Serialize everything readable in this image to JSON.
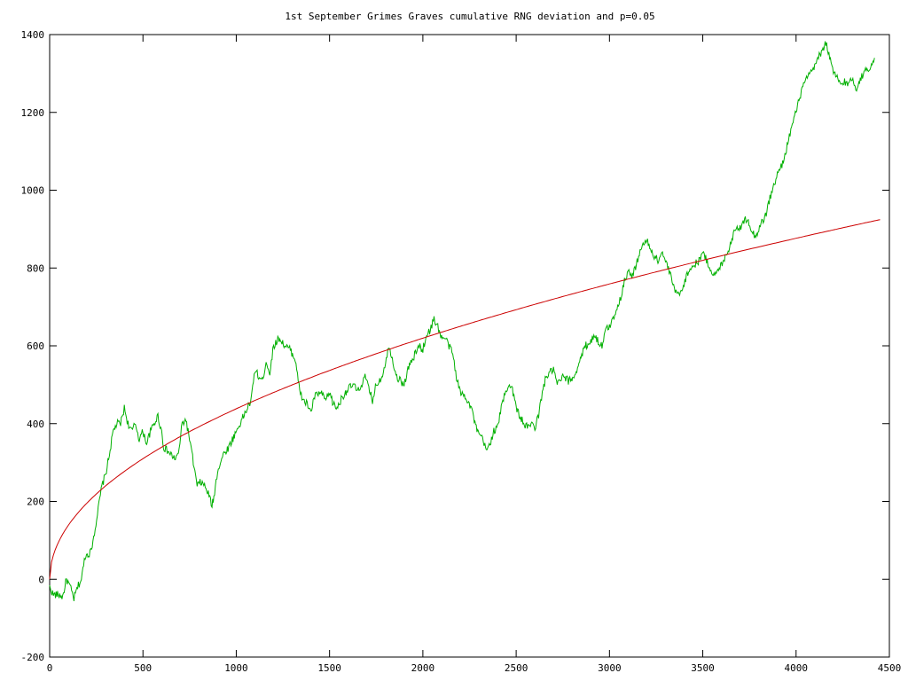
{
  "chart_data": {
    "type": "line",
    "title": "1st September Grimes Graves cumulative RNG deviation and p=0.05",
    "xlabel": "",
    "ylabel": "",
    "xlim": [
      0,
      4500
    ],
    "ylim": [
      -200,
      1400
    ],
    "x_ticks": [
      "0",
      "500",
      "1000",
      "1500",
      "2000",
      "2500",
      "3000",
      "3500",
      "4000",
      "4500"
    ],
    "y_ticks": [
      "-200",
      "0",
      "200",
      "400",
      "600",
      "800",
      "1000",
      "1200",
      "1400"
    ],
    "grid": false,
    "legend": "none",
    "series": [
      {
        "color": "#00b000",
        "points": [
          [
            0,
            -20
          ],
          [
            20,
            -40
          ],
          [
            50,
            -40
          ],
          [
            70,
            -45
          ],
          [
            90,
            0
          ],
          [
            110,
            -20
          ],
          [
            130,
            -50
          ],
          [
            150,
            -20
          ],
          [
            170,
            0
          ],
          [
            190,
            60
          ],
          [
            220,
            70
          ],
          [
            240,
            120
          ],
          [
            260,
            180
          ],
          [
            280,
            240
          ],
          [
            300,
            270
          ],
          [
            320,
            320
          ],
          [
            340,
            380
          ],
          [
            360,
            400
          ],
          [
            380,
            400
          ],
          [
            400,
            440
          ],
          [
            420,
            400
          ],
          [
            440,
            380
          ],
          [
            460,
            400
          ],
          [
            480,
            360
          ],
          [
            500,
            380
          ],
          [
            520,
            350
          ],
          [
            540,
            380
          ],
          [
            560,
            400
          ],
          [
            580,
            420
          ],
          [
            600,
            380
          ],
          [
            610,
            340
          ],
          [
            630,
            330
          ],
          [
            650,
            320
          ],
          [
            670,
            310
          ],
          [
            690,
            320
          ],
          [
            710,
            400
          ],
          [
            730,
            410
          ],
          [
            750,
            360
          ],
          [
            770,
            300
          ],
          [
            790,
            240
          ],
          [
            810,
            250
          ],
          [
            830,
            240
          ],
          [
            850,
            220
          ],
          [
            870,
            190
          ],
          [
            880,
            210
          ],
          [
            900,
            280
          ],
          [
            930,
            320
          ],
          [
            960,
            340
          ],
          [
            990,
            370
          ],
          [
            1020,
            400
          ],
          [
            1050,
            430
          ],
          [
            1080,
            460
          ],
          [
            1100,
            540
          ],
          [
            1120,
            520
          ],
          [
            1140,
            510
          ],
          [
            1160,
            560
          ],
          [
            1180,
            530
          ],
          [
            1200,
            600
          ],
          [
            1230,
            620
          ],
          [
            1260,
            600
          ],
          [
            1290,
            590
          ],
          [
            1320,
            560
          ],
          [
            1340,
            480
          ],
          [
            1360,
            460
          ],
          [
            1380,
            450
          ],
          [
            1400,
            430
          ],
          [
            1420,
            470
          ],
          [
            1450,
            480
          ],
          [
            1480,
            460
          ],
          [
            1500,
            480
          ],
          [
            1520,
            450
          ],
          [
            1540,
            440
          ],
          [
            1570,
            470
          ],
          [
            1600,
            490
          ],
          [
            1630,
            500
          ],
          [
            1650,
            480
          ],
          [
            1670,
            500
          ],
          [
            1690,
            520
          ],
          [
            1710,
            490
          ],
          [
            1730,
            460
          ],
          [
            1750,
            500
          ],
          [
            1780,
            520
          ],
          [
            1800,
            560
          ],
          [
            1820,
            600
          ],
          [
            1840,
            560
          ],
          [
            1860,
            520
          ],
          [
            1880,
            510
          ],
          [
            1900,
            500
          ],
          [
            1920,
            540
          ],
          [
            1940,
            560
          ],
          [
            1960,
            580
          ],
          [
            1980,
            600
          ],
          [
            2000,
            590
          ],
          [
            2020,
            630
          ],
          [
            2040,
            640
          ],
          [
            2060,
            670
          ],
          [
            2080,
            650
          ],
          [
            2100,
            620
          ],
          [
            2120,
            620
          ],
          [
            2140,
            600
          ],
          [
            2160,
            580
          ],
          [
            2180,
            520
          ],
          [
            2200,
            480
          ],
          [
            2230,
            470
          ],
          [
            2260,
            440
          ],
          [
            2290,
            380
          ],
          [
            2320,
            360
          ],
          [
            2340,
            330
          ],
          [
            2360,
            350
          ],
          [
            2380,
            380
          ],
          [
            2400,
            390
          ],
          [
            2420,
            440
          ],
          [
            2440,
            480
          ],
          [
            2460,
            500
          ],
          [
            2480,
            490
          ],
          [
            2500,
            440
          ],
          [
            2520,
            420
          ],
          [
            2540,
            400
          ],
          [
            2560,
            390
          ],
          [
            2580,
            400
          ],
          [
            2600,
            390
          ],
          [
            2620,
            420
          ],
          [
            2640,
            480
          ],
          [
            2660,
            520
          ],
          [
            2680,
            530
          ],
          [
            2700,
            540
          ],
          [
            2720,
            500
          ],
          [
            2750,
            520
          ],
          [
            2780,
            510
          ],
          [
            2810,
            520
          ],
          [
            2840,
            560
          ],
          [
            2870,
            600
          ],
          [
            2900,
            610
          ],
          [
            2920,
            630
          ],
          [
            2940,
            610
          ],
          [
            2960,
            600
          ],
          [
            2980,
            640
          ],
          [
            3000,
            650
          ],
          [
            3020,
            670
          ],
          [
            3040,
            700
          ],
          [
            3060,
            720
          ],
          [
            3080,
            770
          ],
          [
            3100,
            790
          ],
          [
            3120,
            780
          ],
          [
            3140,
            800
          ],
          [
            3160,
            840
          ],
          [
            3180,
            860
          ],
          [
            3200,
            870
          ],
          [
            3220,
            850
          ],
          [
            3240,
            830
          ],
          [
            3260,
            820
          ],
          [
            3280,
            840
          ],
          [
            3300,
            820
          ],
          [
            3320,
            790
          ],
          [
            3340,
            760
          ],
          [
            3360,
            730
          ],
          [
            3380,
            740
          ],
          [
            3400,
            760
          ],
          [
            3420,
            790
          ],
          [
            3440,
            800
          ],
          [
            3460,
            810
          ],
          [
            3480,
            820
          ],
          [
            3500,
            840
          ],
          [
            3520,
            820
          ],
          [
            3540,
            800
          ],
          [
            3560,
            780
          ],
          [
            3580,
            790
          ],
          [
            3600,
            810
          ],
          [
            3620,
            830
          ],
          [
            3640,
            850
          ],
          [
            3660,
            880
          ],
          [
            3680,
            910
          ],
          [
            3700,
            900
          ],
          [
            3720,
            920
          ],
          [
            3740,
            930
          ],
          [
            3760,
            900
          ],
          [
            3780,
            880
          ],
          [
            3800,
            900
          ],
          [
            3820,
            920
          ],
          [
            3840,
            940
          ],
          [
            3860,
            980
          ],
          [
            3880,
            1010
          ],
          [
            3900,
            1040
          ],
          [
            3920,
            1060
          ],
          [
            3940,
            1090
          ],
          [
            3960,
            1130
          ],
          [
            3980,
            1170
          ],
          [
            4000,
            1200
          ],
          [
            4020,
            1240
          ],
          [
            4040,
            1270
          ],
          [
            4060,
            1290
          ],
          [
            4080,
            1300
          ],
          [
            4100,
            1320
          ],
          [
            4120,
            1340
          ],
          [
            4140,
            1360
          ],
          [
            4160,
            1380
          ],
          [
            4180,
            1340
          ],
          [
            4200,
            1300
          ],
          [
            4220,
            1290
          ],
          [
            4240,
            1270
          ],
          [
            4260,
            1280
          ],
          [
            4280,
            1270
          ],
          [
            4300,
            1290
          ],
          [
            4320,
            1260
          ],
          [
            4340,
            1280
          ],
          [
            4360,
            1300
          ],
          [
            4380,
            1310
          ],
          [
            4400,
            1320
          ],
          [
            4420,
            1340
          ]
        ]
      },
      {
        "color": "#cc0000",
        "form": "1.96 * sqrt(x) * 7.07",
        "x": [
          0,
          4450
        ]
      }
    ]
  }
}
